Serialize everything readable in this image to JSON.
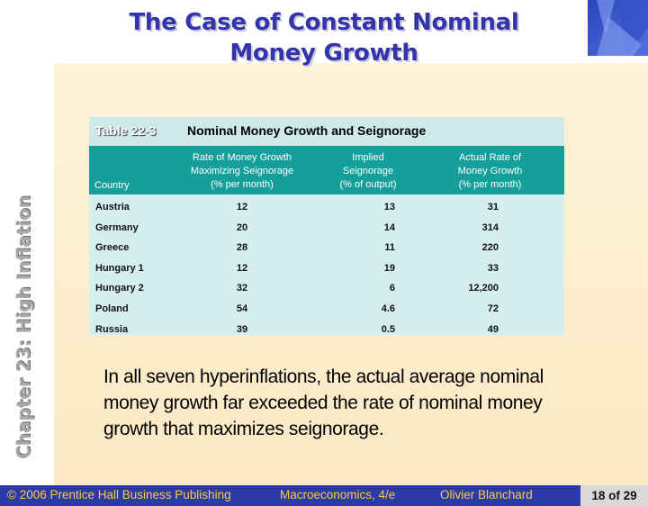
{
  "slide": {
    "title_line1": "The Case of Constant Nominal",
    "title_line2": "Money Growth",
    "side_label": "Chapter 23: High Inflation"
  },
  "table": {
    "number": "Table 22-3",
    "title": "Nominal Money Growth and Seignorage",
    "headers": {
      "country": "Country",
      "col1": [
        "Rate of Money Growth",
        "Maximizing Seignorage",
        "(% per month)"
      ],
      "col2": [
        "Implied",
        "Seignorage",
        "(% of output)"
      ],
      "col3": [
        "Actual Rate of",
        "Money Growth",
        "(% per month)"
      ]
    },
    "rows": [
      {
        "country": "Austria",
        "rate": "12",
        "implied": "13",
        "actual": "31"
      },
      {
        "country": "Germany",
        "rate": "20",
        "implied": "14",
        "actual": "314"
      },
      {
        "country": "Greece",
        "rate": "28",
        "implied": "11",
        "actual": "220"
      },
      {
        "country": "Hungary 1",
        "rate": "12",
        "implied": "19",
        "actual": "33"
      },
      {
        "country": "Hungary 2",
        "rate": "32",
        "implied": "6",
        "actual": "12,200"
      },
      {
        "country": "Poland",
        "rate": "54",
        "implied": "4.6",
        "actual": "72"
      },
      {
        "country": "Russia",
        "rate": "39",
        "implied": "0.5",
        "actual": "49"
      }
    ]
  },
  "body_text": "In all seven hyperinflations, the actual average nominal money growth far exceeded the rate of nominal money growth that maximizes seignorage.",
  "footer": {
    "copyright": "© 2006 Prentice Hall Business Publishing",
    "book": "Macroeconomics, 4/e",
    "author": "Olivier Blanchard",
    "page": "18 of 29"
  }
}
